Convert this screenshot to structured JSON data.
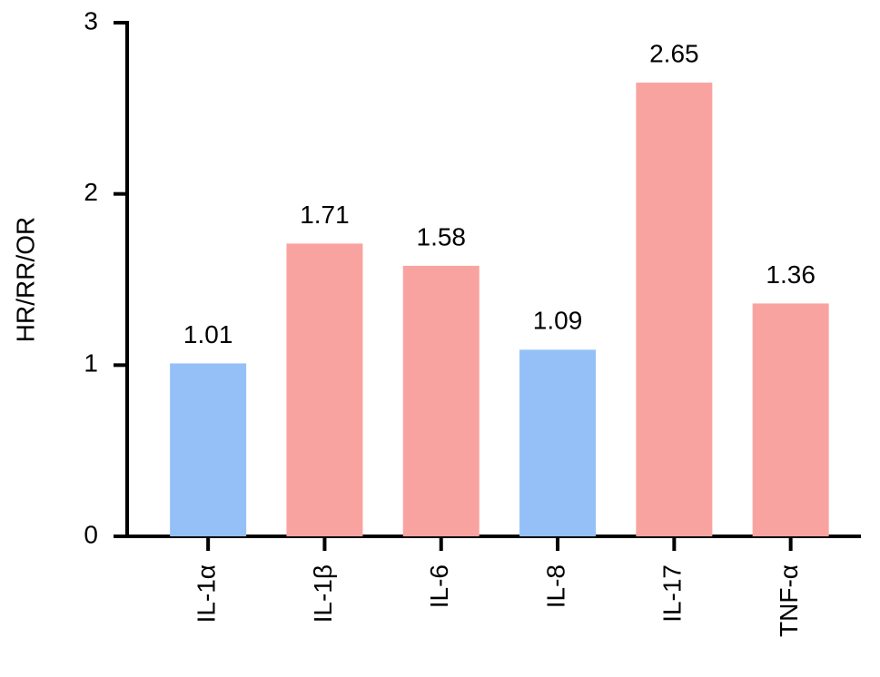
{
  "chart_data": {
    "type": "bar",
    "y_label": "HR/RR/OR",
    "categories": [
      "IL-1α",
      "IL-1β",
      "IL-6",
      "IL-8",
      "IL-17",
      "TNF-α"
    ],
    "values": [
      1.01,
      1.71,
      1.58,
      1.09,
      2.65,
      1.36
    ],
    "colors": [
      "#94c0f7",
      "#f9a3a0",
      "#f9a3a0",
      "#94c0f7",
      "#f9a3a0",
      "#f9a3a0"
    ],
    "ylim": [
      0,
      3
    ],
    "yticks": [
      0,
      1,
      2,
      3
    ],
    "grid": false
  }
}
